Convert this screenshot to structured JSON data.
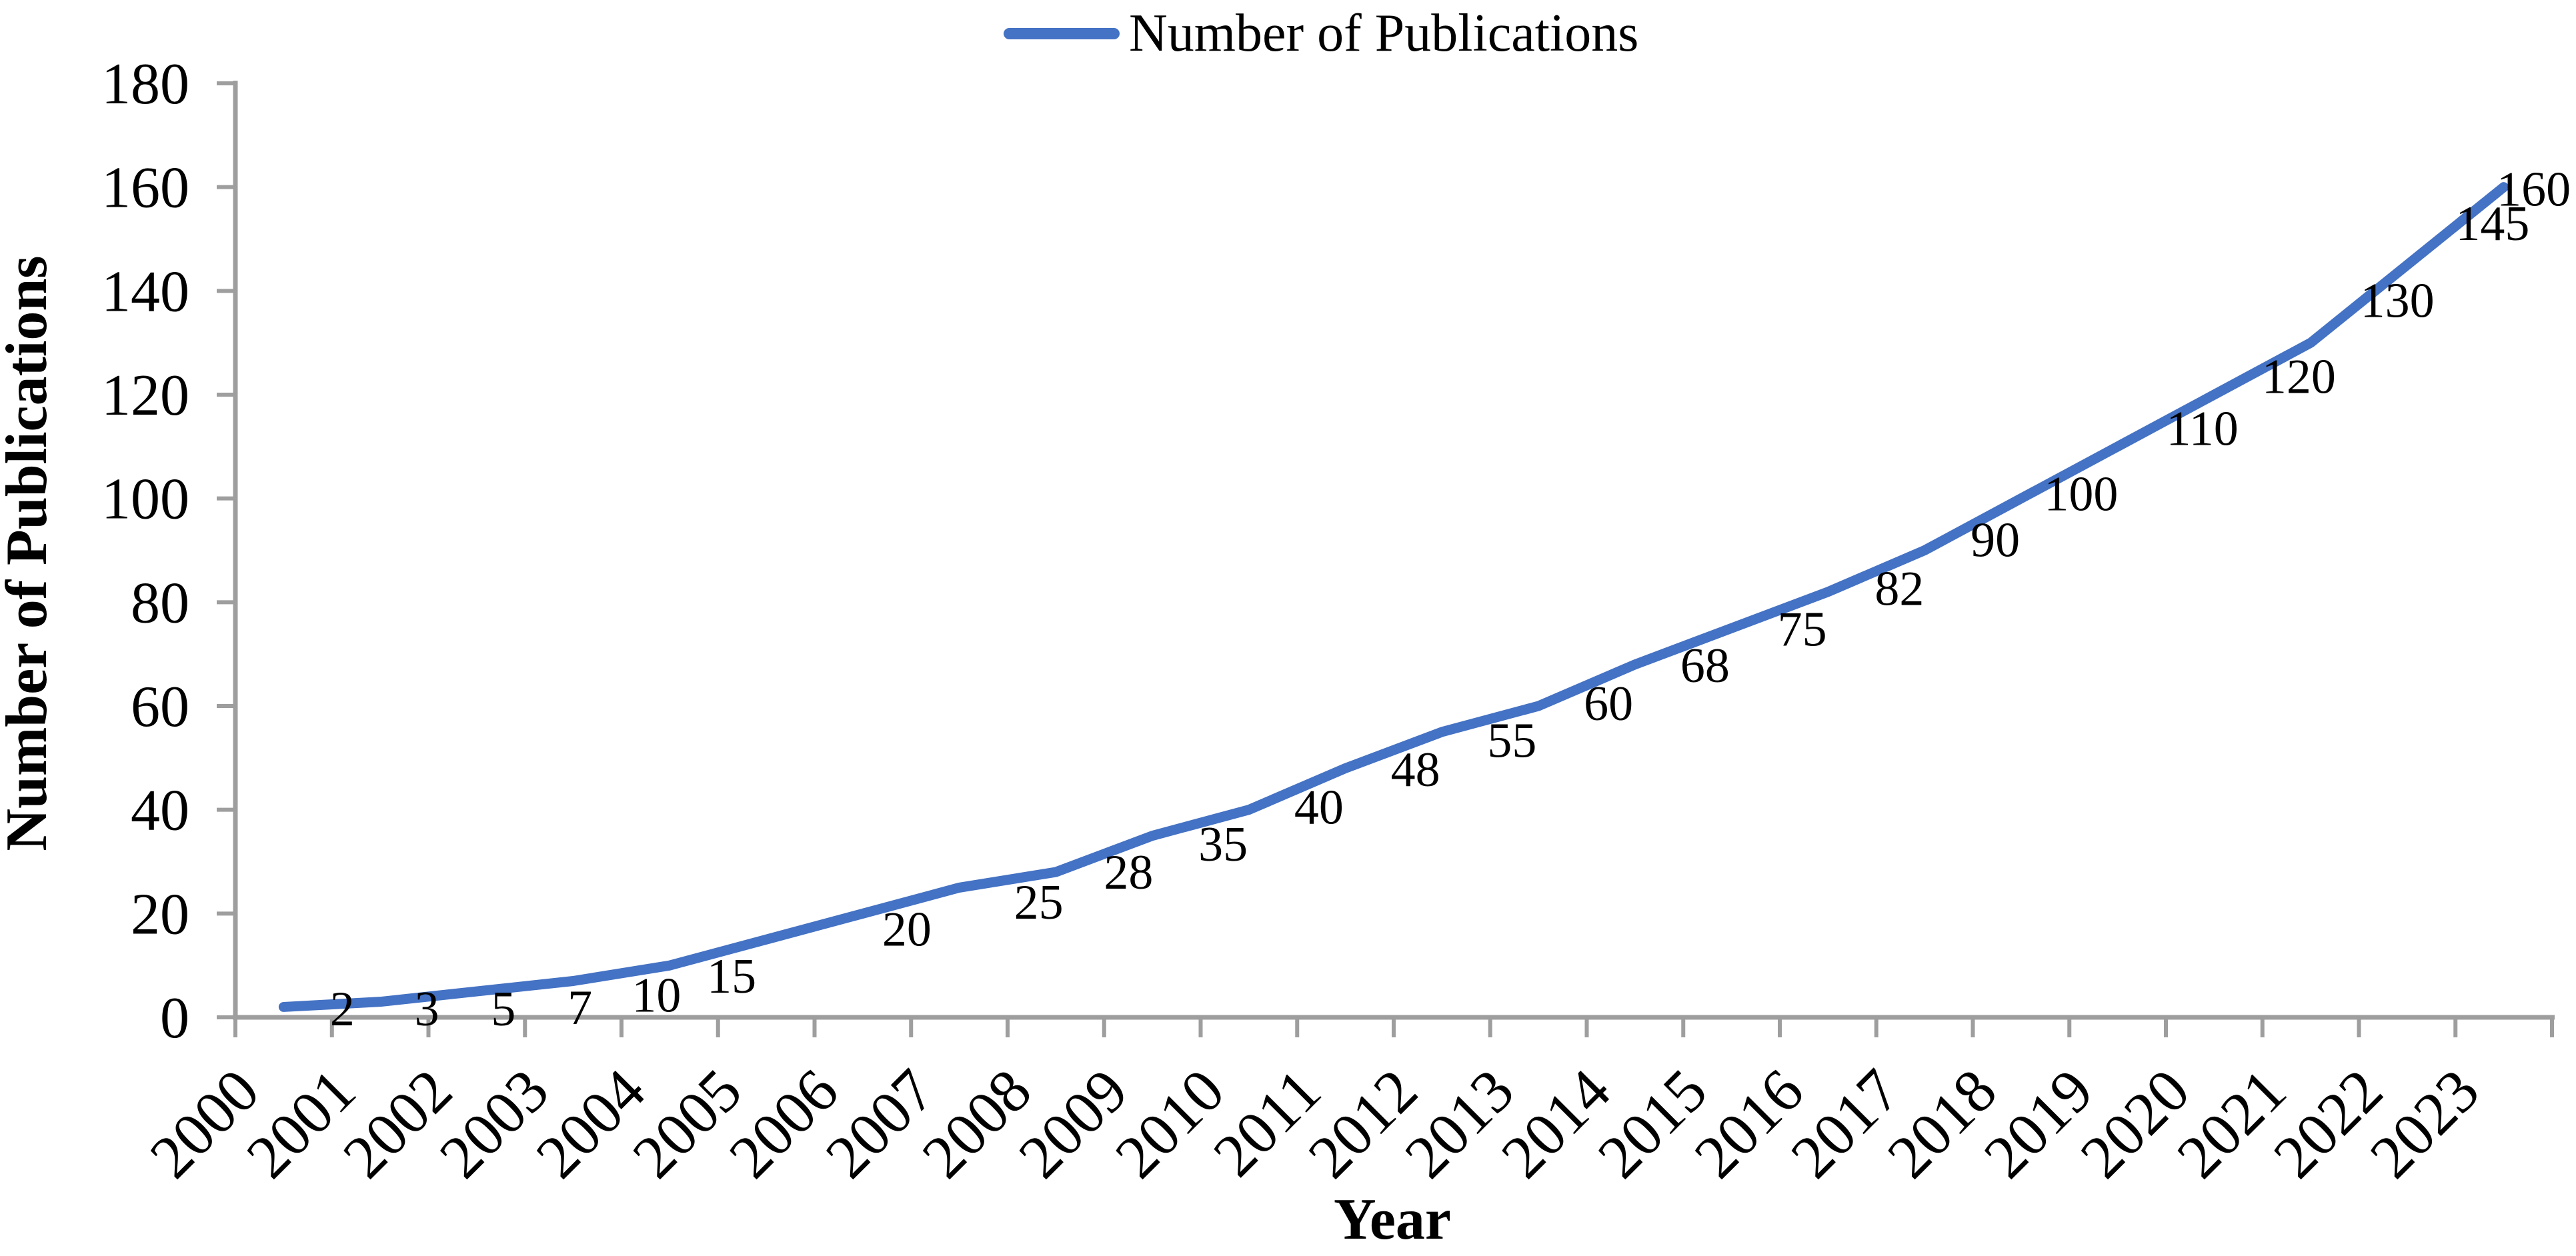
{
  "legend": {
    "label": "Number of Publications",
    "position": "top-center"
  },
  "chart_data": {
    "type": "line",
    "title": "",
    "xlabel": "Year",
    "ylabel": "Number of Publications",
    "categories": [
      "2000",
      "2001",
      "2002",
      "2003",
      "2004",
      "2005",
      "2006",
      "2007",
      "2008",
      "2009",
      "2010",
      "2011",
      "2012",
      "2013",
      "2014",
      "2015",
      "2016",
      "2017",
      "2018",
      "2019",
      "2020",
      "2021",
      "2022",
      "2023"
    ],
    "series": [
      {
        "name": "Number of Publications",
        "color": "#4472C4",
        "values": [
          2,
          3,
          5,
          7,
          10,
          15,
          20,
          25,
          28,
          35,
          40,
          48,
          55,
          60,
          68,
          75,
          82,
          90,
          100,
          110,
          120,
          130,
          145,
          160
        ]
      }
    ],
    "ylim": [
      0,
      180
    ],
    "ytick_step": 20,
    "yticks": [
      0,
      20,
      40,
      60,
      80,
      100,
      120,
      140,
      160,
      180
    ],
    "x_tick_rotation_deg": -45,
    "grid": false,
    "data_labels": true,
    "legend_position": "top-center",
    "axis_color": "#9E9E9E",
    "text_color": "#000000",
    "background": "#FFFFFF"
  }
}
